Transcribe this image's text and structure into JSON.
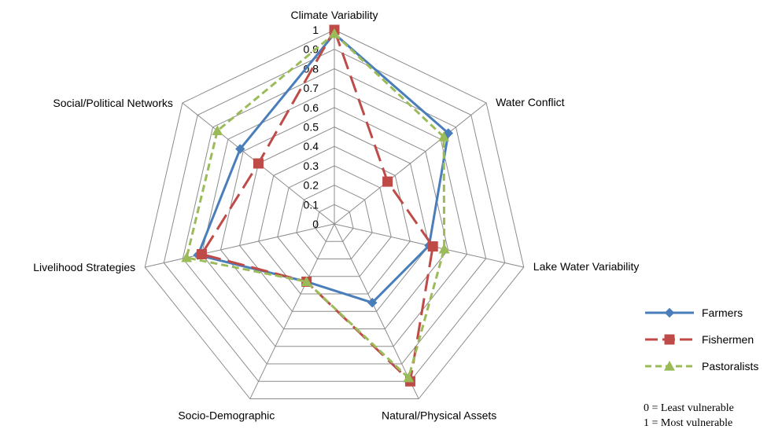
{
  "chart_data": {
    "type": "radar",
    "axes": [
      "Climate Variability",
      "Water Conflict",
      "Lake Water Variability",
      "Natural/Physical Assets",
      "Socio-Demographic",
      "Livelihood Strategies",
      "Social/Political Networks"
    ],
    "ticks": [
      "0",
      "0.1",
      "0.2",
      "0.3",
      "0.4",
      "0.5",
      "0.6",
      "0.7",
      "0.8",
      "0.9",
      "1"
    ],
    "rlim": [
      0,
      1
    ],
    "grid": true,
    "legend_position": "right",
    "series": [
      {
        "name": "Farmers",
        "values": [
          0.98,
          0.75,
          0.5,
          0.45,
          0.33,
          0.72,
          0.62
        ],
        "color": "#4a7ebb",
        "marker": "diamond",
        "dash": "solid"
      },
      {
        "name": "Fishermen",
        "values": [
          1.0,
          0.35,
          0.52,
          0.9,
          0.33,
          0.7,
          0.5
        ],
        "color": "#be4b48",
        "marker": "square",
        "dash": "long-dash"
      },
      {
        "name": "Pastoralists",
        "values": [
          0.98,
          0.72,
          0.58,
          0.88,
          0.33,
          0.78,
          0.77
        ],
        "color": "#9bbb59",
        "marker": "triangle",
        "dash": "short-dash"
      }
    ],
    "notes": [
      "0 = Least vulnerable",
      "1 = Most vulnerable"
    ]
  }
}
